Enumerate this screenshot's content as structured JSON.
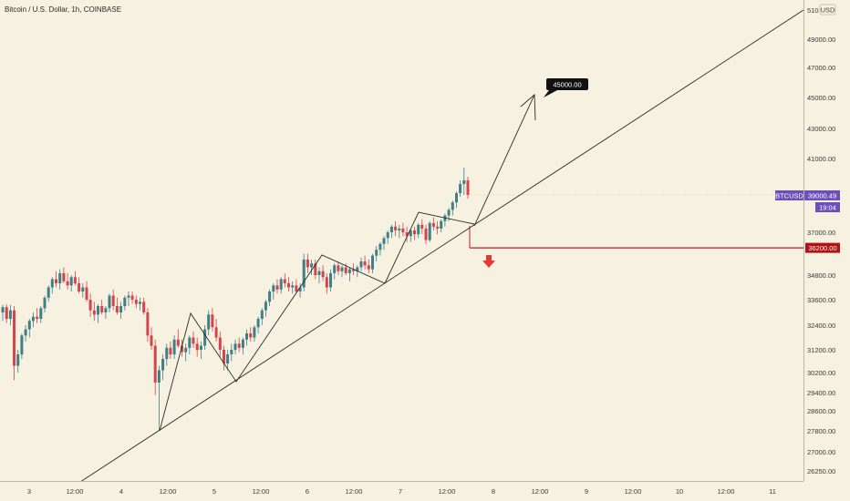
{
  "header": {
    "title": "Bitcoin / U.S. Dollar, 1h, COINBASE"
  },
  "chart_data": {
    "type": "candlestick",
    "title": "Bitcoin / U.S. Dollar, 1h, COINBASE",
    "currency": "USD",
    "y_ticks": [
      26250,
      27000,
      27800,
      28600,
      29400,
      30200,
      31200,
      32400,
      33600,
      34800,
      37000,
      39000,
      41000,
      43000,
      45000,
      47000,
      49000
    ],
    "y_tick_labels": [
      "26250.00",
      "27000.00",
      "27800.00",
      "28600.00",
      "29400.00",
      "30200.00",
      "31200.00",
      "32400.00",
      "33600.00",
      "34800.00",
      "37000.00",
      "39000.00",
      "41000.00",
      "43000.00",
      "45000.00",
      "47000.00",
      "49000.00"
    ],
    "y_top_partial_label": "510",
    "x_ticks": [
      "3",
      "12:00",
      "4",
      "12:00",
      "5",
      "12:00",
      "6",
      "12:00",
      "7",
      "12:00",
      "8",
      "12:00",
      "9",
      "12:00",
      "10",
      "12:00",
      "11"
    ],
    "candles": [
      {
        "o": 33000,
        "h": 33350,
        "l": 32600,
        "c": 33250
      },
      {
        "o": 33250,
        "h": 33380,
        "l": 32500,
        "c": 32700
      },
      {
        "o": 32700,
        "h": 33350,
        "l": 32400,
        "c": 33100
      },
      {
        "o": 33100,
        "h": 33300,
        "l": 29900,
        "c": 30500
      },
      {
        "o": 30500,
        "h": 31200,
        "l": 30200,
        "c": 31000
      },
      {
        "o": 31000,
        "h": 32000,
        "l": 30800,
        "c": 31900
      },
      {
        "o": 31900,
        "h": 32400,
        "l": 31600,
        "c": 32200
      },
      {
        "o": 32200,
        "h": 32700,
        "l": 31800,
        "c": 32600
      },
      {
        "o": 32600,
        "h": 33000,
        "l": 32300,
        "c": 32800
      },
      {
        "o": 32800,
        "h": 33200,
        "l": 32500,
        "c": 32700
      },
      {
        "o": 32700,
        "h": 33300,
        "l": 32500,
        "c": 33200
      },
      {
        "o": 33200,
        "h": 33800,
        "l": 33000,
        "c": 33700
      },
      {
        "o": 33700,
        "h": 34300,
        "l": 33500,
        "c": 34200
      },
      {
        "o": 34200,
        "h": 34700,
        "l": 33900,
        "c": 34600
      },
      {
        "o": 34600,
        "h": 35000,
        "l": 34200,
        "c": 34400
      },
      {
        "o": 34400,
        "h": 35100,
        "l": 34100,
        "c": 34900
      },
      {
        "o": 34900,
        "h": 35200,
        "l": 34400,
        "c": 34500
      },
      {
        "o": 34500,
        "h": 34900,
        "l": 34100,
        "c": 34300
      },
      {
        "o": 34300,
        "h": 34800,
        "l": 34000,
        "c": 34700
      },
      {
        "o": 34700,
        "h": 35000,
        "l": 34300,
        "c": 34400
      },
      {
        "o": 34400,
        "h": 34700,
        "l": 33900,
        "c": 34000
      },
      {
        "o": 34000,
        "h": 34400,
        "l": 33700,
        "c": 34200
      },
      {
        "o": 34200,
        "h": 34500,
        "l": 33500,
        "c": 33600
      },
      {
        "o": 33600,
        "h": 33900,
        "l": 32800,
        "c": 33100
      },
      {
        "o": 33100,
        "h": 33500,
        "l": 32600,
        "c": 32900
      },
      {
        "o": 32900,
        "h": 33400,
        "l": 32500,
        "c": 33300
      },
      {
        "o": 33300,
        "h": 33600,
        "l": 32900,
        "c": 33000
      },
      {
        "o": 33000,
        "h": 33300,
        "l": 32700,
        "c": 33200
      },
      {
        "o": 33200,
        "h": 33900,
        "l": 33000,
        "c": 33800
      },
      {
        "o": 33800,
        "h": 34100,
        "l": 33100,
        "c": 33300
      },
      {
        "o": 33300,
        "h": 33700,
        "l": 32900,
        "c": 33000
      },
      {
        "o": 33000,
        "h": 33500,
        "l": 32700,
        "c": 33300
      },
      {
        "o": 33300,
        "h": 33800,
        "l": 33100,
        "c": 33700
      },
      {
        "o": 33700,
        "h": 34000,
        "l": 33300,
        "c": 33800
      },
      {
        "o": 33800,
        "h": 34000,
        "l": 33400,
        "c": 33600
      },
      {
        "o": 33600,
        "h": 33800,
        "l": 33200,
        "c": 33400
      },
      {
        "o": 33400,
        "h": 33700,
        "l": 33100,
        "c": 33500
      },
      {
        "o": 33500,
        "h": 33700,
        "l": 32900,
        "c": 33000
      },
      {
        "o": 33000,
        "h": 33200,
        "l": 31600,
        "c": 31900
      },
      {
        "o": 31900,
        "h": 32300,
        "l": 31200,
        "c": 31400
      },
      {
        "o": 31400,
        "h": 31700,
        "l": 29300,
        "c": 29800
      },
      {
        "o": 29800,
        "h": 30500,
        "l": 27800,
        "c": 30300
      },
      {
        "o": 30300,
        "h": 31000,
        "l": 29900,
        "c": 30800
      },
      {
        "o": 30800,
        "h": 31500,
        "l": 30500,
        "c": 31300
      },
      {
        "o": 31300,
        "h": 31600,
        "l": 30800,
        "c": 31000
      },
      {
        "o": 31000,
        "h": 31900,
        "l": 30800,
        "c": 31700
      },
      {
        "o": 31700,
        "h": 32200,
        "l": 31300,
        "c": 31400
      },
      {
        "o": 31400,
        "h": 31700,
        "l": 30900,
        "c": 31100
      },
      {
        "o": 31100,
        "h": 31500,
        "l": 30700,
        "c": 31300
      },
      {
        "o": 31300,
        "h": 31900,
        "l": 31000,
        "c": 31800
      },
      {
        "o": 31800,
        "h": 32100,
        "l": 31300,
        "c": 31500
      },
      {
        "o": 31500,
        "h": 31800,
        "l": 30900,
        "c": 31200
      },
      {
        "o": 31200,
        "h": 31600,
        "l": 30800,
        "c": 31400
      },
      {
        "o": 31400,
        "h": 32400,
        "l": 31200,
        "c": 32200
      },
      {
        "o": 32200,
        "h": 33100,
        "l": 31900,
        "c": 32900
      },
      {
        "o": 32900,
        "h": 33200,
        "l": 32100,
        "c": 32300
      },
      {
        "o": 32300,
        "h": 32700,
        "l": 31600,
        "c": 31800
      },
      {
        "o": 31800,
        "h": 32100,
        "l": 30900,
        "c": 31200
      },
      {
        "o": 31200,
        "h": 31400,
        "l": 30300,
        "c": 30600
      },
      {
        "o": 30600,
        "h": 31200,
        "l": 30300,
        "c": 31000
      },
      {
        "o": 31000,
        "h": 31500,
        "l": 30700,
        "c": 31200
      },
      {
        "o": 31200,
        "h": 31700,
        "l": 31000,
        "c": 31500
      },
      {
        "o": 31500,
        "h": 31800,
        "l": 31100,
        "c": 31300
      },
      {
        "o": 31300,
        "h": 31800,
        "l": 31000,
        "c": 31700
      },
      {
        "o": 31700,
        "h": 32200,
        "l": 31400,
        "c": 32000
      },
      {
        "o": 32000,
        "h": 32300,
        "l": 31600,
        "c": 31800
      },
      {
        "o": 31800,
        "h": 32400,
        "l": 31600,
        "c": 32300
      },
      {
        "o": 32300,
        "h": 32800,
        "l": 32000,
        "c": 32700
      },
      {
        "o": 32700,
        "h": 33200,
        "l": 32400,
        "c": 33100
      },
      {
        "o": 33100,
        "h": 33600,
        "l": 32800,
        "c": 33500
      },
      {
        "o": 33500,
        "h": 34100,
        "l": 33300,
        "c": 34000
      },
      {
        "o": 34000,
        "h": 34400,
        "l": 33600,
        "c": 34300
      },
      {
        "o": 34300,
        "h": 34600,
        "l": 33900,
        "c": 34100
      },
      {
        "o": 34100,
        "h": 34700,
        "l": 33900,
        "c": 34600
      },
      {
        "o": 34600,
        "h": 34900,
        "l": 34200,
        "c": 34400
      },
      {
        "o": 34400,
        "h": 34700,
        "l": 34000,
        "c": 34200
      },
      {
        "o": 34200,
        "h": 34500,
        "l": 33900,
        "c": 34300
      },
      {
        "o": 34300,
        "h": 34600,
        "l": 33900,
        "c": 34000
      },
      {
        "o": 34000,
        "h": 34400,
        "l": 33700,
        "c": 34200
      },
      {
        "o": 34200,
        "h": 35900,
        "l": 34000,
        "c": 35600
      },
      {
        "o": 35600,
        "h": 35900,
        "l": 34900,
        "c": 35200
      },
      {
        "o": 35200,
        "h": 35600,
        "l": 34800,
        "c": 35400
      },
      {
        "o": 35400,
        "h": 35600,
        "l": 34600,
        "c": 34800
      },
      {
        "o": 34800,
        "h": 35200,
        "l": 34400,
        "c": 35000
      },
      {
        "o": 35000,
        "h": 35300,
        "l": 34500,
        "c": 34700
      },
      {
        "o": 34700,
        "h": 34900,
        "l": 33900,
        "c": 34200
      },
      {
        "o": 34200,
        "h": 35100,
        "l": 34000,
        "c": 34900
      },
      {
        "o": 34900,
        "h": 35400,
        "l": 34600,
        "c": 35300
      },
      {
        "o": 35300,
        "h": 35500,
        "l": 34800,
        "c": 35000
      },
      {
        "o": 35000,
        "h": 35300,
        "l": 34700,
        "c": 35200
      },
      {
        "o": 35200,
        "h": 35400,
        "l": 34800,
        "c": 34900
      },
      {
        "o": 34900,
        "h": 35200,
        "l": 34500,
        "c": 35100
      },
      {
        "o": 35100,
        "h": 35400,
        "l": 34800,
        "c": 35000
      },
      {
        "o": 35000,
        "h": 35300,
        "l": 34700,
        "c": 35200
      },
      {
        "o": 35200,
        "h": 35700,
        "l": 35000,
        "c": 35500
      },
      {
        "o": 35500,
        "h": 35800,
        "l": 35100,
        "c": 35300
      },
      {
        "o": 35300,
        "h": 35600,
        "l": 34900,
        "c": 35100
      },
      {
        "o": 35100,
        "h": 35900,
        "l": 34900,
        "c": 35800
      },
      {
        "o": 35800,
        "h": 36300,
        "l": 35500,
        "c": 36100
      },
      {
        "o": 36100,
        "h": 36500,
        "l": 35800,
        "c": 36400
      },
      {
        "o": 36400,
        "h": 36800,
        "l": 36100,
        "c": 36700
      },
      {
        "o": 36700,
        "h": 37100,
        "l": 36400,
        "c": 37000
      },
      {
        "o": 37000,
        "h": 37400,
        "l": 36700,
        "c": 37300
      },
      {
        "o": 37300,
        "h": 37600,
        "l": 36800,
        "c": 37100
      },
      {
        "o": 37100,
        "h": 37400,
        "l": 36700,
        "c": 37200
      },
      {
        "o": 37200,
        "h": 37500,
        "l": 36800,
        "c": 37000
      },
      {
        "o": 37000,
        "h": 37300,
        "l": 36500,
        "c": 36800
      },
      {
        "o": 36800,
        "h": 37200,
        "l": 36500,
        "c": 37100
      },
      {
        "o": 37100,
        "h": 37300,
        "l": 36600,
        "c": 36900
      },
      {
        "o": 36900,
        "h": 37500,
        "l": 36700,
        "c": 37400
      },
      {
        "o": 37400,
        "h": 37700,
        "l": 36900,
        "c": 37200
      },
      {
        "o": 37200,
        "h": 37400,
        "l": 36400,
        "c": 36600
      },
      {
        "o": 36600,
        "h": 37600,
        "l": 36500,
        "c": 37500
      },
      {
        "o": 37500,
        "h": 37800,
        "l": 37100,
        "c": 37300
      },
      {
        "o": 37300,
        "h": 37600,
        "l": 36900,
        "c": 37200
      },
      {
        "o": 37200,
        "h": 37700,
        "l": 37000,
        "c": 37600
      },
      {
        "o": 37600,
        "h": 38000,
        "l": 37300,
        "c": 37900
      },
      {
        "o": 37900,
        "h": 38300,
        "l": 37600,
        "c": 38200
      },
      {
        "o": 38200,
        "h": 38700,
        "l": 37900,
        "c": 38600
      },
      {
        "o": 38600,
        "h": 39200,
        "l": 38300,
        "c": 39100
      },
      {
        "o": 39100,
        "h": 39800,
        "l": 38900,
        "c": 39600
      },
      {
        "o": 39600,
        "h": 40500,
        "l": 39000,
        "c": 39800
      },
      {
        "o": 39800,
        "h": 40000,
        "l": 38800,
        "c": 39000
      }
    ],
    "current_price": {
      "symbol": "BTCUSD",
      "value": "39000.49",
      "countdown": "19:04",
      "price": 39000.49
    },
    "annotations": {
      "target_label": "45000.00",
      "target_price": 45000,
      "support_level_label": "36200.00",
      "support_level": 36200
    },
    "colors": {
      "background": "#f6f1e0",
      "up_candle": "#3f7f86",
      "down_candle": "#d4444c",
      "drawing_line": "#2b2b2b",
      "support_line": "#c11e1e",
      "price_tag": "#6c4fb8",
      "level_tag": "#b21212",
      "target_tag": "#111111"
    }
  }
}
